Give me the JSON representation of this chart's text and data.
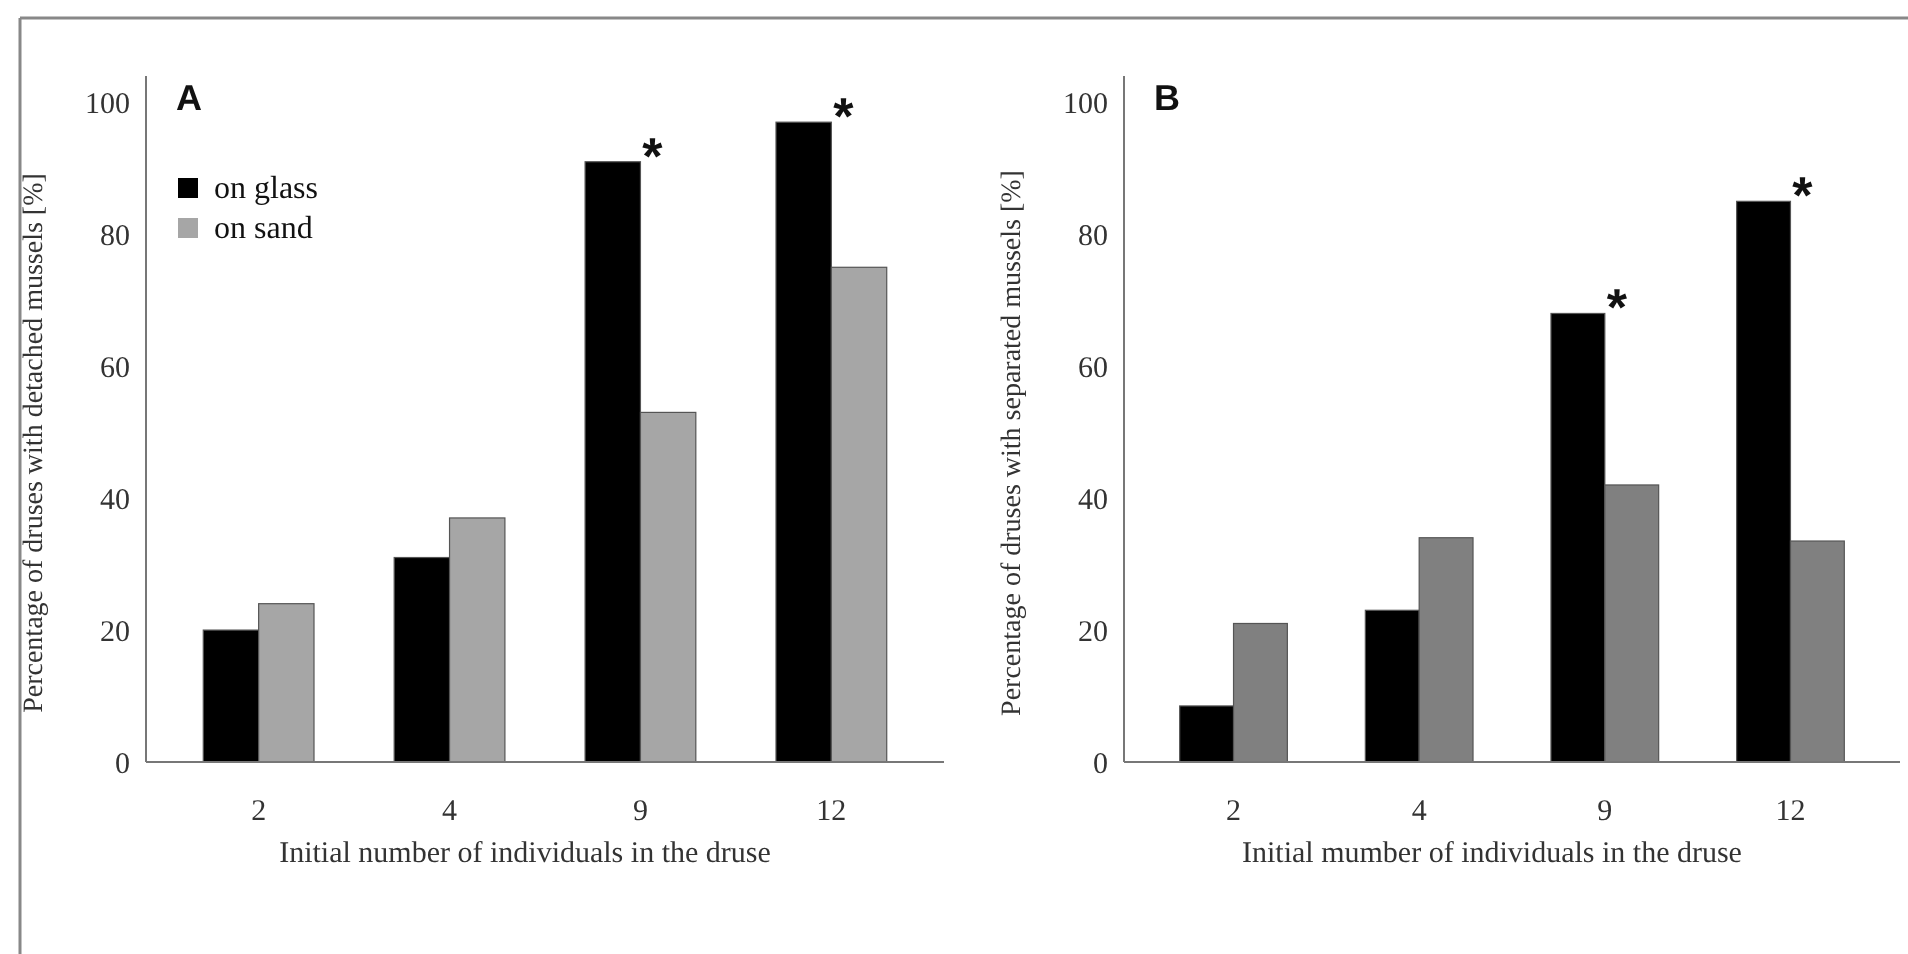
{
  "chart_data": [
    {
      "type": "bar",
      "title": "A",
      "xlabel": "Initial number of individuals in the druse",
      "ylabel": "Percentage of druses with detached mussels [%]",
      "categories": [
        "2",
        "4",
        "9",
        "12"
      ],
      "series": [
        {
          "name": "on glass",
          "color": "#000000",
          "values": [
            20,
            31,
            91,
            97
          ]
        },
        {
          "name": "on sand",
          "color": "#a6a6a6",
          "values": [
            24,
            37,
            53,
            75
          ]
        }
      ],
      "ylim": [
        0,
        104
      ],
      "yticks": [
        0,
        20,
        40,
        60,
        80,
        100
      ],
      "legend": "top left",
      "annotations": [
        {
          "text": "*",
          "x": "9",
          "y": 91
        },
        {
          "text": "*",
          "x": "12",
          "y": 97
        }
      ]
    },
    {
      "type": "bar",
      "title": "B",
      "xlabel": "Initial mumber of individuals in the druse",
      "ylabel": "Percentage of druses with separated mussels [%]",
      "categories": [
        "2",
        "4",
        "9",
        "12"
      ],
      "series": [
        {
          "color": "#000000",
          "values": [
            8.5,
            23,
            68,
            85
          ]
        },
        {
          "color": "#808080",
          "values": [
            21,
            34,
            42,
            33.5
          ]
        }
      ],
      "ylim": [
        0,
        104
      ],
      "yticks": [
        0,
        20,
        40,
        60,
        80,
        100
      ],
      "annotations": [
        {
          "text": "*",
          "x": "9",
          "y": 68
        },
        {
          "text": "*",
          "x": "12",
          "y": 85
        }
      ]
    }
  ]
}
